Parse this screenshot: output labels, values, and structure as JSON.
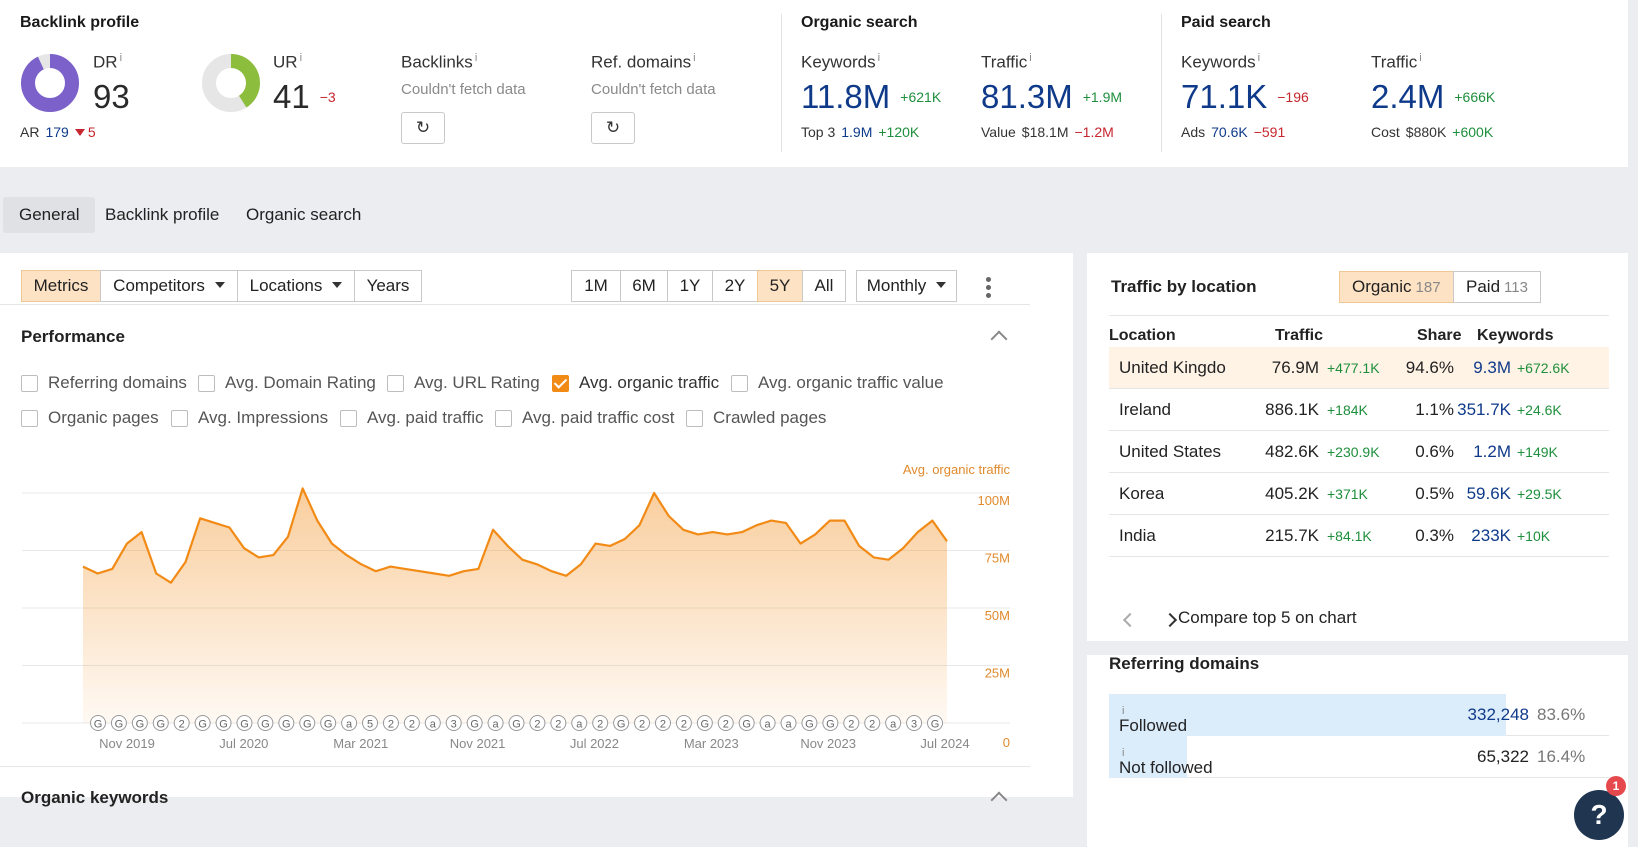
{
  "summary": {
    "backlink_profile": {
      "title": "Backlink profile",
      "dr": {
        "label": "DR",
        "value": "93",
        "fraction": 0.93,
        "color": "#7b61c9"
      },
      "ur": {
        "label": "UR",
        "value": "41",
        "delta": "−3",
        "fraction": 0.41,
        "color": "#8dbd3c"
      },
      "ar": {
        "label": "AR",
        "value": "179",
        "delta": "5"
      },
      "backlinks": {
        "label": "Backlinks",
        "status": "Couldn't fetch data"
      },
      "ref_domains": {
        "label": "Ref. domains",
        "status": "Couldn't fetch data"
      }
    },
    "organic_search": {
      "title": "Organic search",
      "keywords": {
        "label": "Keywords",
        "value": "11.8M",
        "delta": "+621K",
        "sub_label": "Top 3",
        "sub_value": "1.9M",
        "sub_delta": "+120K"
      },
      "traffic": {
        "label": "Traffic",
        "value": "81.3M",
        "delta": "+1.9M",
        "sub_label": "Value",
        "sub_value": "$18.1M",
        "sub_delta": "−1.2M"
      }
    },
    "paid_search": {
      "title": "Paid search",
      "keywords": {
        "label": "Keywords",
        "value": "71.1K",
        "delta": "−196",
        "sub_label": "Ads",
        "sub_value": "70.6K",
        "sub_delta": "−591"
      },
      "traffic": {
        "label": "Traffic",
        "value": "2.4M",
        "delta": "+666K",
        "sub_label": "Cost",
        "sub_value": "$880K",
        "sub_delta": "+600K"
      }
    }
  },
  "tabs": [
    "General",
    "Backlink profile",
    "Organic search"
  ],
  "toolbar": {
    "views": [
      "Metrics",
      "Competitors",
      "Locations",
      "Years"
    ],
    "ranges": [
      "1M",
      "6M",
      "1Y",
      "2Y",
      "5Y",
      "All"
    ],
    "granularity": "Monthly"
  },
  "performance": {
    "title": "Performance",
    "checkboxes": [
      {
        "label": "Referring domains",
        "checked": false
      },
      {
        "label": "Avg. Domain Rating",
        "checked": false
      },
      {
        "label": "Avg. URL Rating",
        "checked": false
      },
      {
        "label": "Avg. organic traffic",
        "checked": true
      },
      {
        "label": "Avg. organic traffic value",
        "checked": false
      },
      {
        "label": "Organic pages",
        "checked": false
      },
      {
        "label": "Avg. Impressions",
        "checked": false
      },
      {
        "label": "Avg. paid traffic",
        "checked": false
      },
      {
        "label": "Avg. paid traffic cost",
        "checked": false
      },
      {
        "label": "Crawled pages",
        "checked": false
      }
    ]
  },
  "chart_data": {
    "type": "area",
    "series": [
      {
        "name": "Avg. organic traffic",
        "color": "#f28a16",
        "values": [
          68,
          65,
          67,
          78,
          83,
          65,
          61,
          70,
          89,
          87,
          85,
          76,
          72,
          73,
          81,
          102,
          88,
          78,
          73,
          69,
          66,
          68,
          67,
          66,
          65,
          64,
          66,
          67,
          84,
          77,
          71,
          69,
          66,
          64,
          69,
          78,
          77,
          80,
          86,
          100,
          90,
          84,
          82,
          83,
          82,
          83,
          86,
          88,
          87,
          78,
          82,
          88,
          88,
          77,
          72,
          71,
          76,
          83,
          88,
          79
        ]
      }
    ],
    "x_ticks": [
      "Nov 2019",
      "Jul 2020",
      "Mar 2021",
      "Nov 2021",
      "Jul 2022",
      "Mar 2023",
      "Nov 2023",
      "Jul 2024"
    ],
    "y_ticks": [
      "0",
      "25M",
      "50M",
      "75M",
      "100M"
    ],
    "ylim": [
      0,
      100
    ],
    "grid": true,
    "annotations": [
      "G",
      "G",
      "G",
      "G",
      "2",
      "G",
      "G",
      "G",
      "G",
      "G",
      "G",
      "G",
      "a",
      "5",
      "2",
      "2",
      "a",
      "3",
      "G",
      "a",
      "G",
      "2",
      "2",
      "a",
      "2",
      "G",
      "2",
      "2",
      "2",
      "G",
      "2",
      "G",
      "a",
      "a",
      "G",
      "G",
      "2",
      "2",
      "a",
      "3",
      "G"
    ]
  },
  "organic_keywords": {
    "title": "Organic keywords"
  },
  "traffic_by_location": {
    "title": "Traffic by location",
    "toggle": [
      {
        "label": "Organic",
        "count": "187"
      },
      {
        "label": "Paid",
        "count": "113"
      }
    ],
    "headers": [
      "Location",
      "Traffic",
      "Share",
      "Keywords"
    ],
    "rows": [
      {
        "location": "United Kingdoı",
        "traffic": "76.9M",
        "traffic_delta": "+477.1K",
        "share": "94.6%",
        "keywords": "9.3M",
        "keywords_delta": "+672.6K"
      },
      {
        "location": "Ireland",
        "traffic": "886.1K",
        "traffic_delta": "+184K",
        "share": "1.1%",
        "keywords": "351.7K",
        "keywords_delta": "+24.6K"
      },
      {
        "location": "United States",
        "traffic": "482.6K",
        "traffic_delta": "+230.9K",
        "share": "0.6%",
        "keywords": "1.2M",
        "keywords_delta": "+149K"
      },
      {
        "location": "Korea",
        "traffic": "405.2K",
        "traffic_delta": "+371K",
        "share": "0.5%",
        "keywords": "59.6K",
        "keywords_delta": "+29.5K"
      },
      {
        "location": "India",
        "traffic": "215.7K",
        "traffic_delta": "+84.1K",
        "share": "0.3%",
        "keywords": "233K",
        "keywords_delta": "+10K"
      }
    ],
    "compare_label": "Compare top 5 on chart"
  },
  "referring_domains": {
    "title": "Referring domains",
    "rows": [
      {
        "label": "Followed",
        "value": "332,248",
        "pct": "83.6%",
        "fraction": 0.836
      },
      {
        "label": "Not followed",
        "value": "65,322",
        "pct": "16.4%",
        "fraction": 0.164
      }
    ]
  },
  "help": {
    "label": "?",
    "badge": "1"
  }
}
